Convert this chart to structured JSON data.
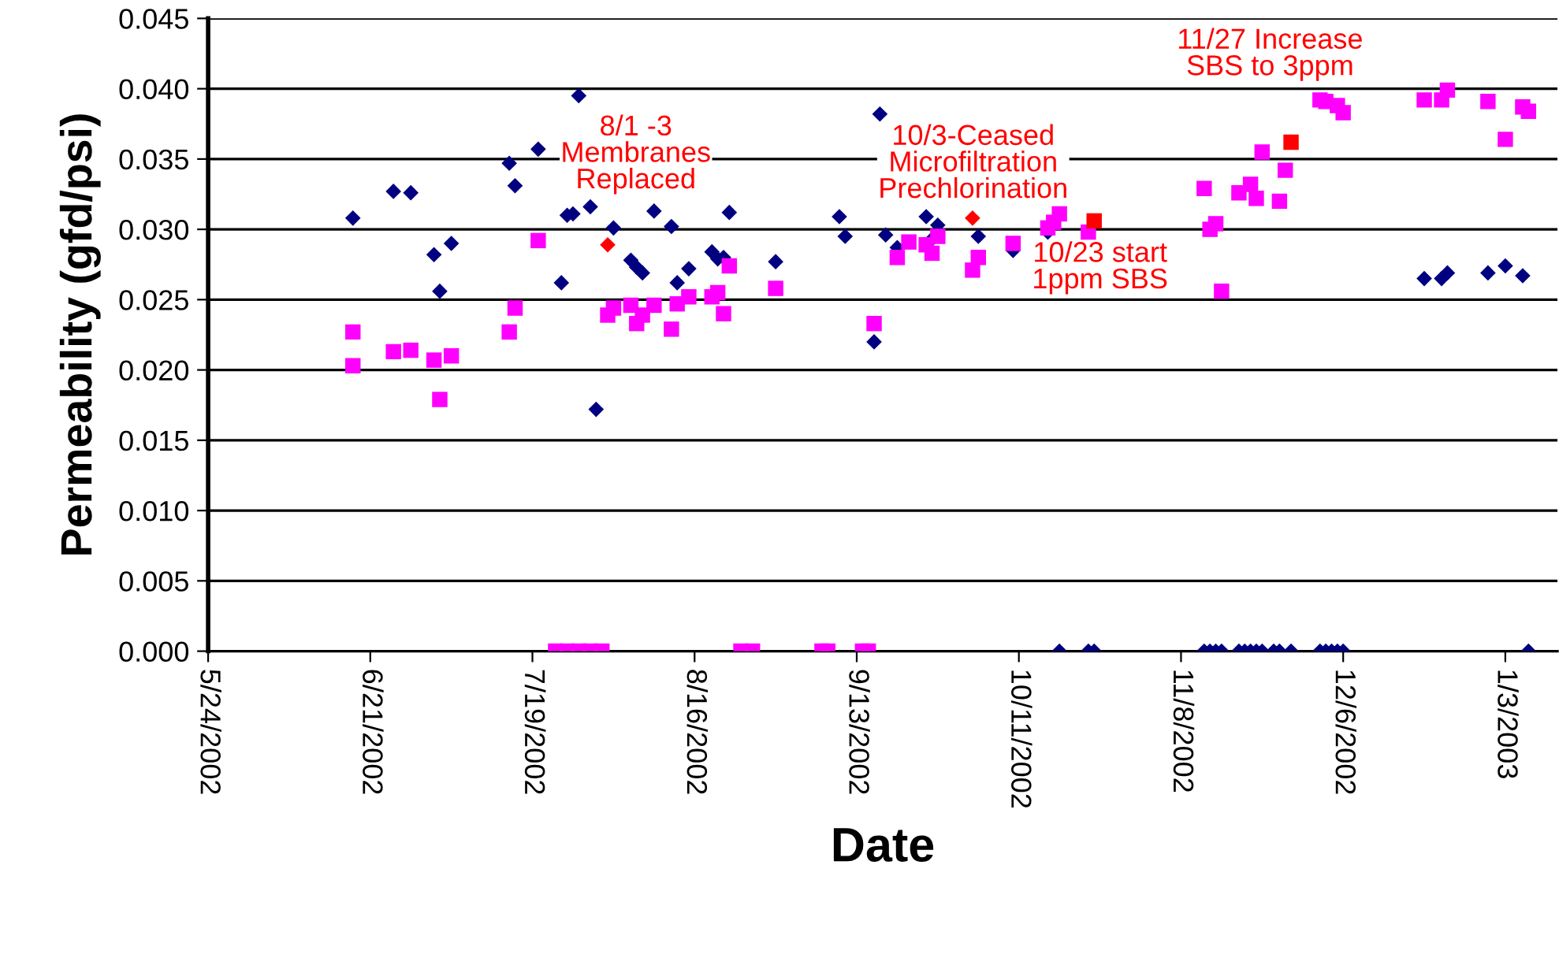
{
  "chart_data": {
    "type": "scatter",
    "xlabel": "Date",
    "ylabel": "Permeability (gfd/psi)",
    "xlim": [
      "2002-05-24",
      "2003-01-12"
    ],
    "xticks": [
      {
        "value": "2002-05-24",
        "label": "5/24/2002"
      },
      {
        "value": "2002-06-21",
        "label": "6/21/2002"
      },
      {
        "value": "2002-07-19",
        "label": "7/19/2002"
      },
      {
        "value": "2002-08-16",
        "label": "8/16/2002"
      },
      {
        "value": "2002-09-13",
        "label": "9/13/2002"
      },
      {
        "value": "2002-10-11",
        "label": "10/11/2002"
      },
      {
        "value": "2002-11-08",
        "label": "11/8/2002"
      },
      {
        "value": "2002-12-06",
        "label": "12/6/2002"
      },
      {
        "value": "2003-01-03",
        "label": "1/3/2003"
      }
    ],
    "ylim": [
      0,
      0.045
    ],
    "yticks": [
      {
        "value": 0,
        "label": "0.000"
      },
      {
        "value": 0.005,
        "label": "0.005"
      },
      {
        "value": 0.01,
        "label": "0.010"
      },
      {
        "value": 0.015,
        "label": "0.015"
      },
      {
        "value": 0.02,
        "label": "0.020"
      },
      {
        "value": 0.025,
        "label": "0.025"
      },
      {
        "value": 0.03,
        "label": "0.030"
      },
      {
        "value": 0.035,
        "label": "0.035"
      },
      {
        "value": 0.04,
        "label": "0.040"
      },
      {
        "value": 0.045,
        "label": "0.045"
      }
    ],
    "grid": "y",
    "series": [
      {
        "color": "#000080",
        "marker": "diamond",
        "x": [
          "2002-06-18",
          "2002-06-25",
          "2002-06-28",
          "2002-07-02",
          "2002-07-03",
          "2002-07-05",
          "2002-07-15",
          "2002-07-16",
          "2002-07-20",
          "2002-07-24",
          "2002-07-25",
          "2002-07-26",
          "2002-07-27",
          "2002-07-29",
          "2002-07-30",
          "2002-08-02",
          "2002-08-05",
          "2002-08-06",
          "2002-08-07",
          "2002-08-09",
          "2002-08-12",
          "2002-08-13",
          "2002-08-15",
          "2002-08-19",
          "2002-08-20",
          "2002-08-21",
          "2002-08-22",
          "2002-08-30",
          "2002-09-10",
          "2002-09-11",
          "2002-09-16",
          "2002-09-17",
          "2002-09-18",
          "2002-09-20",
          "2002-09-25",
          "2002-09-26",
          "2002-09-27",
          "2002-10-04",
          "2002-10-10",
          "2002-10-16",
          "2002-10-18",
          "2002-10-23",
          "2002-10-24",
          "2002-11-12",
          "2002-11-13",
          "2002-11-14",
          "2002-11-15",
          "2002-11-18",
          "2002-11-19",
          "2002-11-20",
          "2002-11-21",
          "2002-11-22",
          "2002-11-24",
          "2002-11-25",
          "2002-11-27",
          "2002-12-02",
          "2002-12-03",
          "2002-12-04",
          "2002-12-05",
          "2002-12-06",
          "2002-12-20",
          "2002-12-23",
          "2002-12-24",
          "2002-12-31",
          "2003-01-03",
          "2003-01-06",
          "2003-01-07"
        ],
        "values": [
          0.0308,
          0.0327,
          0.0326,
          0.0282,
          0.0256,
          0.029,
          0.0347,
          0.0331,
          0.0357,
          0.0262,
          0.031,
          0.0311,
          0.0395,
          0.0316,
          0.0172,
          0.0301,
          0.0278,
          0.0273,
          0.0269,
          0.0313,
          0.0302,
          0.0262,
          0.0272,
          0.0284,
          0.0279,
          0.028,
          0.0312,
          0.0277,
          0.0309,
          0.0295,
          0.022,
          0.0382,
          0.0296,
          0.0287,
          0.0309,
          0.0293,
          0.0303,
          0.0295,
          0.0285,
          0.0298,
          0,
          0,
          0,
          0,
          0,
          0,
          0,
          0,
          0,
          0,
          0,
          0,
          0,
          0,
          0,
          0,
          0,
          0,
          0,
          0,
          0.0265,
          0.0265,
          0.0269,
          0.0269,
          0.0274,
          0.0267,
          0
        ]
      },
      {
        "color": "#ff00ff",
        "marker": "square",
        "x": [
          "2002-06-18",
          "2002-06-18",
          "2002-06-25",
          "2002-06-28",
          "2002-07-02",
          "2002-07-03",
          "2002-07-05",
          "2002-07-15",
          "2002-07-16",
          "2002-07-20",
          "2002-07-23",
          "2002-07-25",
          "2002-07-27",
          "2002-07-29",
          "2002-07-31",
          "2002-08-01",
          "2002-08-02",
          "2002-08-05",
          "2002-08-06",
          "2002-08-07",
          "2002-08-09",
          "2002-08-12",
          "2002-08-13",
          "2002-08-15",
          "2002-08-19",
          "2002-08-20",
          "2002-08-21",
          "2002-08-22",
          "2002-08-24",
          "2002-08-26",
          "2002-08-30",
          "2002-09-07",
          "2002-09-08",
          "2002-09-14",
          "2002-09-15",
          "2002-09-16",
          "2002-09-20",
          "2002-09-22",
          "2002-09-25",
          "2002-09-26",
          "2002-09-27",
          "2002-10-03",
          "2002-10-04",
          "2002-10-10",
          "2002-10-16",
          "2002-10-17",
          "2002-10-18",
          "2002-10-23",
          "2002-11-12",
          "2002-11-13",
          "2002-11-14",
          "2002-11-15",
          "2002-11-18",
          "2002-11-20",
          "2002-11-21",
          "2002-11-22",
          "2002-11-25",
          "2002-11-26",
          "2002-12-02",
          "2002-12-03",
          "2002-12-05",
          "2002-12-06",
          "2002-12-20",
          "2002-12-23",
          "2002-12-24",
          "2002-12-31",
          "2003-01-03",
          "2003-01-06",
          "2003-01-07"
        ],
        "values": [
          0.0227,
          0.0203,
          0.0213,
          0.0214,
          0.0207,
          0.0179,
          0.021,
          0.0227,
          0.0244,
          0.0292,
          0,
          0,
          0,
          0,
          0,
          0.0239,
          0.0244,
          0.0246,
          0.0233,
          0.0239,
          0.0246,
          0.0229,
          0.0247,
          0.0252,
          0.0252,
          0.0255,
          0.024,
          0.0274,
          0,
          0,
          0.0258,
          0,
          0,
          0,
          0,
          0.0233,
          0.028,
          0.0291,
          0.0289,
          0.0283,
          0.0295,
          0.0271,
          0.028,
          0.029,
          0.0301,
          0.0305,
          0.0311,
          0.0298,
          0.0329,
          0.03,
          0.0304,
          0.0256,
          0.0326,
          0.0332,
          0.0322,
          0.0355,
          0.032,
          0.0342,
          0.0392,
          0.0391,
          0.0388,
          0.0383,
          0.0392,
          0.0392,
          0.0399,
          0.0391,
          0.0364,
          0.0387,
          0.0384
        ]
      },
      {
        "color": "#ff0000",
        "marker": "diamond",
        "x": [
          "2002-08-01",
          "2002-10-03"
        ],
        "values": [
          0.0289,
          0.0308
        ]
      },
      {
        "color": "#ff0000",
        "marker": "square",
        "x": [
          "2002-10-24",
          "2002-11-27"
        ],
        "values": [
          0.0306,
          0.0362
        ]
      }
    ],
    "annotations": [
      "8/1 -3\nMembranes\nReplaced",
      "10/3-Ceased\nMicrofiltration\nPrechlorination",
      "10/23 start\n1ppm SBS",
      "11/27 Increase\nSBS to 3ppm"
    ]
  }
}
